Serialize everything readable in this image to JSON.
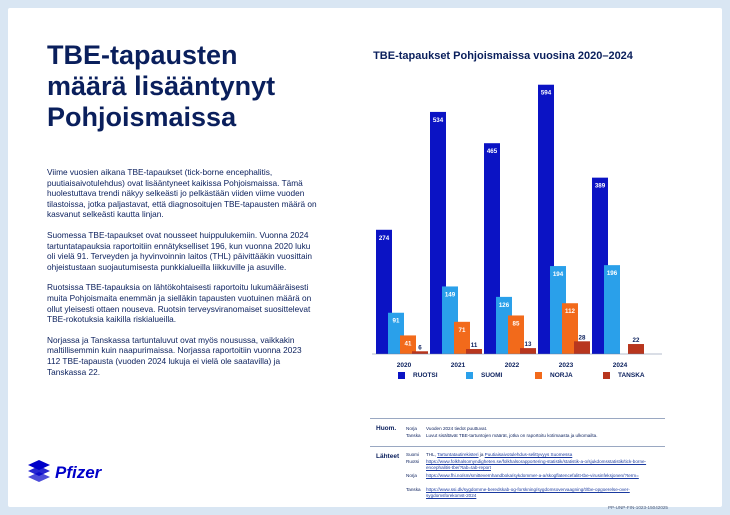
{
  "page": {
    "title": "TBE-tapausten määrä lisääntynyt Pohjoismaissa",
    "paragraphs": [
      "Viime vuosien aikana TBE-tapaukset (tick-borne encephalitis, puutiaisaivotulehdus) ovat lisääntyneet kaikissa Pohjoismaissa. Tämä huolestuttava trendi näkyy selkeästi jo pelkästään viiden viime vuoden tilastoissa, jotka paljastavat, että diagnosoitujen TBE-tapausten määrä on kasvanut selkeästi kautta linjan.",
      "Suomessa TBE-tapaukset ovat nousseet huippulukemiin. Vuonna 2024 tartuntatapauksia raportoitiin ennätykselliset 196, kun vuonna 2020 luku oli vielä 91. Terveyden ja hyvinvoinnin laitos (THL) päivittääkin vuosittain ohjeistustaan suojautumisesta punkkialueilla liikkuville ja asuville.",
      "Ruotsissa TBE-tapauksia on lähtökohtaisesti raportoitu lukumääräisesti muita Pohjoismaita enemmän ja sielläkin tapausten vuotuinen määrä on ollut yleisesti ottaen nouseva. Ruotsin terveysviranomaiset suosittelevat TBE-rokotuksia kaikilla riskialueilla.",
      "Norjassa ja Tanskassa tartuntaluvut ovat myös nousussa, vaikkakin maltillisemmin kuin naapurimaissa. Norjassa raportoitiin vuonna 2023 112 TBE-tapausta (vuoden 2024 lukuja ei vielä ole saatavilla) ja Tanskassa 22."
    ],
    "logo_text": "Pfizer",
    "doc_code": "PP-UNP-FIN-1023-15042025"
  },
  "notes": {
    "huom_heading": "Huom.",
    "huom_rows": [
      {
        "country": "Norja",
        "text": "Vuoden 2024 tiedot puuttuvat."
      },
      {
        "country": "Tanska",
        "text": "Luvut sisältävät TBE-tartuntojen määrät, jotka on raportoitu kotimaasta ja ulkomailta."
      }
    ],
    "sources_heading": "Lähteet",
    "sources": [
      {
        "country": "Suomi",
        "text": "THL, ",
        "link": "Tartuntatautirekisteri",
        "text2": " ja ",
        "link2": "Puutiaisaivotulehdus-selittyvyys Suomessa"
      },
      {
        "country": "Ruotsi",
        "text": "",
        "link": "https://www.folkhalsomyndigheten.se/folkhalsorapportering-statistik/statistik-a-o/sjukdomsstatistik/tick-borne-encephalitis-tbe/?tab=tab-report",
        "text2": "",
        "link2": ""
      },
      {
        "country": "Norja",
        "text": "",
        "link": "https://www.fhi.no/sm/smittevernhandboka/sykdommer-a-a/skogflatencefalitt-tbe-virusinfeksjonen/?term=",
        "text2": "",
        "link2": ""
      },
      {
        "country": "Tanska",
        "text": "",
        "link": "https://www.ssi.dk/sygdomme-beredskab-og-forskning/sygdomsovervaagning/t/tbe-opgoerelse-over-sygdomsforekomst-2024",
        "text2": "",
        "link2": ""
      }
    ]
  },
  "chart_data": {
    "type": "bar",
    "title": "TBE-tapaukset Pohjoismaissa vuosina 2020–2024",
    "categories": [
      "2020",
      "2021",
      "2022",
      "2023",
      "2024"
    ],
    "series": [
      {
        "name": "RUOTSI",
        "color": "#0b13c4",
        "values": [
          274,
          534,
          465,
          594,
          389
        ]
      },
      {
        "name": "SUOMI",
        "color": "#2aa0ea",
        "values": [
          91,
          149,
          126,
          194,
          196
        ]
      },
      {
        "name": "NORJA",
        "color": "#f26a1b",
        "values": [
          41,
          71,
          85,
          112,
          null
        ]
      },
      {
        "name": "TANSKA",
        "color": "#b8361e",
        "values": [
          6,
          11,
          13,
          28,
          22
        ]
      }
    ],
    "ylim": [
      0,
      600
    ],
    "grid": false,
    "legend": "bottom",
    "data_labels": true
  }
}
